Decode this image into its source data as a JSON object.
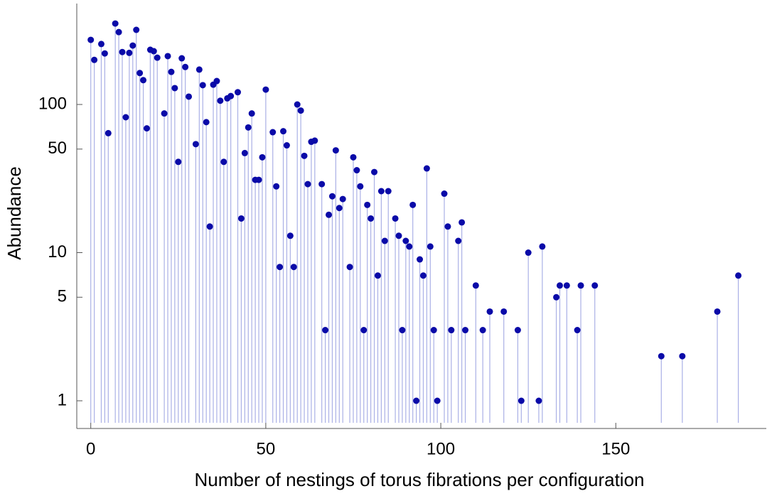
{
  "chart_data": {
    "type": "stem",
    "xlabel": "Number of nestings of torus fibrations per configuration",
    "ylabel": "Abundance",
    "log_y": true,
    "point_color": "#0a0aa8",
    "stem_color": "#aab0e6",
    "xlim": [
      -4,
      193
    ],
    "ylim": [
      0.65,
      480
    ],
    "xticks": [
      0,
      50,
      100,
      150
    ],
    "yticks": [
      1,
      5,
      10,
      50,
      100
    ],
    "x": [
      0,
      1,
      3,
      4,
      5,
      7,
      8,
      9,
      10,
      11,
      12,
      13,
      14,
      15,
      16,
      17,
      18,
      19,
      21,
      22,
      23,
      24,
      25,
      26,
      27,
      28,
      30,
      31,
      32,
      33,
      34,
      35,
      36,
      37,
      38,
      39,
      40,
      42,
      43,
      44,
      45,
      46,
      47,
      48,
      49,
      50,
      52,
      53,
      54,
      55,
      56,
      57,
      58,
      59,
      60,
      61,
      62,
      63,
      64,
      66,
      67,
      68,
      69,
      70,
      71,
      72,
      74,
      75,
      76,
      77,
      78,
      79,
      80,
      81,
      82,
      83,
      84,
      85,
      87,
      88,
      89,
      90,
      91,
      92,
      93,
      94,
      95,
      96,
      97,
      98,
      99,
      101,
      102,
      103,
      105,
      106,
      107,
      110,
      112,
      114,
      118,
      122,
      123,
      125,
      128,
      129,
      133,
      134,
      136,
      139,
      140,
      144,
      163,
      169,
      179,
      185
    ],
    "values": [
      273,
      200,
      256,
      221,
      64,
      352,
      308,
      226,
      82,
      223,
      250,
      319,
      163,
      146,
      69,
      234,
      229,
      207,
      87,
      212,
      166,
      129,
      41,
      205,
      179,
      113,
      54,
      172,
      135,
      76,
      15,
      136,
      144,
      106,
      41,
      110,
      114,
      121,
      17,
      47,
      70,
      87,
      31,
      31,
      44,
      126,
      65,
      28,
      8,
      66,
      53,
      13,
      8,
      100,
      91,
      45,
      29,
      56,
      57,
      29,
      3,
      18,
      24,
      49,
      20,
      23,
      8,
      44,
      36,
      28,
      3,
      21,
      17,
      35,
      7,
      26,
      12,
      26,
      17,
      13,
      3,
      12,
      11,
      21,
      1,
      9,
      7,
      37,
      11,
      3,
      1,
      25,
      15,
      3,
      12,
      16,
      3,
      6,
      3,
      4,
      4,
      3,
      1,
      10,
      1,
      11,
      5,
      6,
      6,
      3,
      6,
      6,
      2,
      2,
      4,
      7
    ]
  }
}
